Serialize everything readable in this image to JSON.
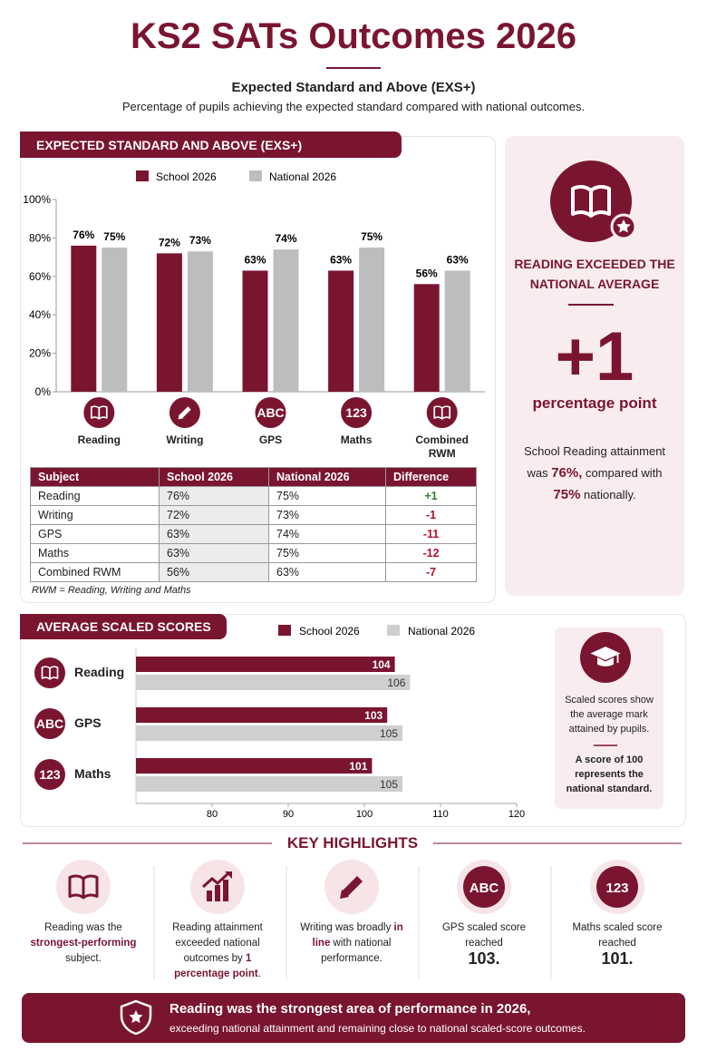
{
  "header": {
    "title": "KS2 SATs Outcomes 2026",
    "subtitle": "Expected Standard and Above (EXS+)",
    "description": "Percentage of pupils achieving the expected standard compared with national outcomes."
  },
  "icon_text": {
    "letters": "ABC",
    "numbers": "123"
  },
  "chart_data": [
    {
      "type": "bar",
      "title": "EXPECTED STANDARD AND ABOVE (EXS+)",
      "categories": [
        "Reading",
        "Writing",
        "GPS",
        "Maths",
        "Combined RWM"
      ],
      "series": [
        {
          "name": "School 2026",
          "color": "#7a1530",
          "values": [
            76,
            72,
            63,
            63,
            56
          ],
          "value_labels": [
            "76%",
            "72%",
            "63%",
            "63%",
            "56%"
          ]
        },
        {
          "name": "National 2026",
          "color": "#bdbdbd",
          "values": [
            75,
            73,
            74,
            75,
            63
          ],
          "value_labels": [
            "75%",
            "73%",
            "74%",
            "75%",
            "63%"
          ]
        }
      ],
      "ylim": [
        0,
        100
      ],
      "yticks": [
        {
          "value": 0,
          "label": "0%"
        },
        {
          "value": 20,
          "label": "20%"
        },
        {
          "value": 40,
          "label": "40%"
        },
        {
          "value": 60,
          "label": "60%"
        },
        {
          "value": 80,
          "label": "80%"
        },
        {
          "value": 100,
          "label": "100%"
        }
      ],
      "grid": false
    },
    {
      "type": "hbar",
      "title": "AVERAGE SCALED SCORES",
      "categories": [
        "Reading",
        "GPS",
        "Maths"
      ],
      "series": [
        {
          "name": "School 2026",
          "color": "#7a1530",
          "values": [
            104,
            103,
            101
          ]
        },
        {
          "name": "National 2026",
          "color": "#cfcfcf",
          "values": [
            106,
            105,
            105
          ]
        }
      ],
      "xlim": [
        70,
        120
      ],
      "xticks": [
        80,
        90,
        100,
        110,
        120
      ],
      "grid": false
    }
  ],
  "table": {
    "columns": [
      "Subject",
      "School 2026",
      "National 2026",
      "Difference"
    ],
    "rows": [
      [
        "Reading",
        "76%",
        "75%",
        "+1"
      ],
      [
        "Writing",
        "72%",
        "73%",
        "-1"
      ],
      [
        "GPS",
        "63%",
        "74%",
        "-11"
      ],
      [
        "Maths",
        "63%",
        "75%",
        "-12"
      ],
      [
        "Combined RWM",
        "56%",
        "63%",
        "-7"
      ]
    ],
    "note": "RWM = Reading, Writing and Maths"
  },
  "reading_callout": {
    "heading": "READING EXCEEDED THE NATIONAL AVERAGE",
    "figure": "+1",
    "unit": "percentage point",
    "text": [
      "School Reading attainment was ",
      "76%,",
      " compared with ",
      "75%",
      " nationally."
    ]
  },
  "scaled_note": {
    "text": "Scaled scores show the average mark attained by pupils.",
    "emphasis": "A score of 100 represents the national standard."
  },
  "key_highlights": {
    "title": "KEY HIGHLIGHTS",
    "items": [
      [
        "Reading was the ",
        "strongest-performing",
        " subject."
      ],
      [
        "Reading attainment exceeded national outcomes by ",
        "1 percentage point",
        "."
      ],
      [
        "Writing was broadly ",
        "in line",
        " with national performance."
      ],
      [
        "GPS scaled score reached ",
        "103."
      ],
      [
        "Maths scaled score reached ",
        "101."
      ]
    ]
  },
  "footer": {
    "headline": "Reading was the strongest area of performance in 2026,",
    "text": "exceeding national attainment and remaining close to national scaled-score outcomes."
  }
}
